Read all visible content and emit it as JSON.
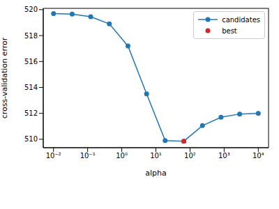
{
  "chart_data": {
    "type": "line",
    "xlabel": "alpha",
    "ylabel": "cross-validation error",
    "log": "x",
    "x": [
      0.01,
      0.0351,
      0.123,
      0.433,
      1.52,
      5.34,
      18.7,
      65.8,
      231,
      811,
      2848,
      10000
    ],
    "series": [
      {
        "name": "candidates",
        "color": "#1f77b4",
        "marker": "circle",
        "line_style": "solid",
        "values": [
          519.7,
          519.65,
          519.45,
          518.9,
          517.2,
          513.5,
          509.9,
          509.85,
          511.05,
          511.7,
          511.95,
          512.0
        ]
      },
      {
        "name": "best",
        "color": "#d62728",
        "type": "scatter",
        "marker": "circle",
        "values": [
          null,
          null,
          null,
          null,
          null,
          null,
          null,
          509.85,
          null,
          null,
          null,
          null
        ]
      }
    ],
    "xlim": [
      0.005,
      20000
    ],
    "ylim": [
      509.35,
      520.1
    ],
    "xticks": [
      {
        "value": 0.01,
        "label": "10⁻²"
      },
      {
        "value": 0.1,
        "label": "10⁻¹"
      },
      {
        "value": 1,
        "label": "10⁰"
      },
      {
        "value": 10,
        "label": "10¹"
      },
      {
        "value": 100,
        "label": "10²"
      },
      {
        "value": 1000,
        "label": "10³"
      },
      {
        "value": 10000,
        "label": "10⁴"
      }
    ],
    "yticks": [
      510,
      512,
      514,
      516,
      518,
      520
    ],
    "legend": "upper right",
    "grid": false
  }
}
